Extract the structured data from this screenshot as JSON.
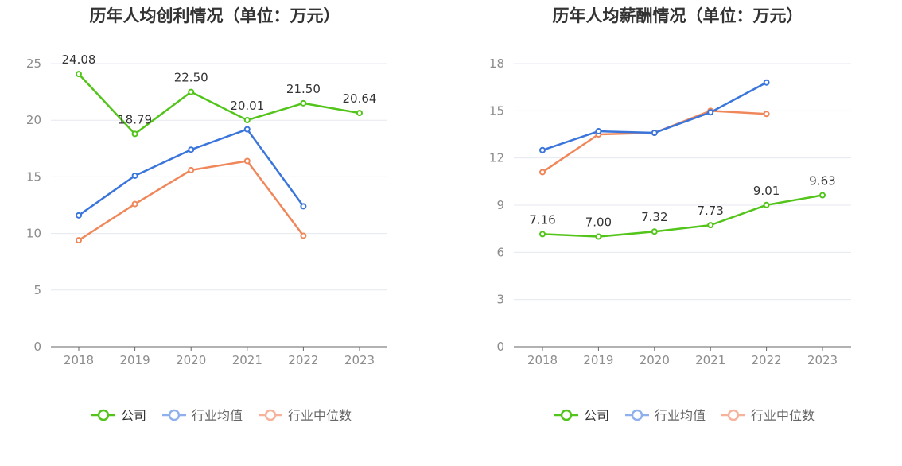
{
  "colors": {
    "company": "#52c41a",
    "industry_avg": "#3a75db",
    "industry_median": "#f0875a",
    "grid": "#e5e8ef",
    "axis": "#666666",
    "tick_text": "#8c8c8c",
    "title": "#333333"
  },
  "chart_data": [
    {
      "type": "line",
      "title": "历年人均创利情况（单位：万元）",
      "xlabel": "",
      "ylabel": "",
      "categories": [
        "2018",
        "2019",
        "2020",
        "2021",
        "2022",
        "2023"
      ],
      "ylim": [
        0,
        25
      ],
      "yticks": [
        0,
        5,
        10,
        15,
        20,
        25
      ],
      "grid": true,
      "legend_position": "bottom",
      "series": [
        {
          "name": "公司",
          "values": [
            24.08,
            18.79,
            22.5,
            20.01,
            21.5,
            20.64
          ],
          "labels": [
            "24.08",
            "18.79",
            "22.50",
            "20.01",
            "21.50",
            "20.64"
          ]
        },
        {
          "name": "行业均值",
          "values": [
            11.6,
            15.1,
            17.4,
            19.2,
            12.4,
            null
          ]
        },
        {
          "name": "行业中位数",
          "values": [
            9.4,
            12.6,
            15.6,
            16.4,
            9.8,
            null
          ]
        }
      ]
    },
    {
      "type": "line",
      "title": "历年人均薪酬情况（单位：万元）",
      "xlabel": "",
      "ylabel": "",
      "categories": [
        "2018",
        "2019",
        "2020",
        "2021",
        "2022",
        "2023"
      ],
      "ylim": [
        0,
        18
      ],
      "yticks": [
        0,
        3,
        6,
        9,
        12,
        15,
        18
      ],
      "grid": true,
      "legend_position": "bottom",
      "series": [
        {
          "name": "公司",
          "values": [
            7.16,
            7.0,
            7.32,
            7.73,
            9.01,
            9.63
          ],
          "labels": [
            "7.16",
            "7.00",
            "7.32",
            "7.73",
            "9.01",
            "9.63"
          ]
        },
        {
          "name": "行业均值",
          "values": [
            12.5,
            13.7,
            13.6,
            14.9,
            16.8,
            null
          ]
        },
        {
          "name": "行业中位数",
          "values": [
            11.1,
            13.5,
            13.6,
            15.0,
            14.8,
            null
          ]
        }
      ]
    }
  ]
}
